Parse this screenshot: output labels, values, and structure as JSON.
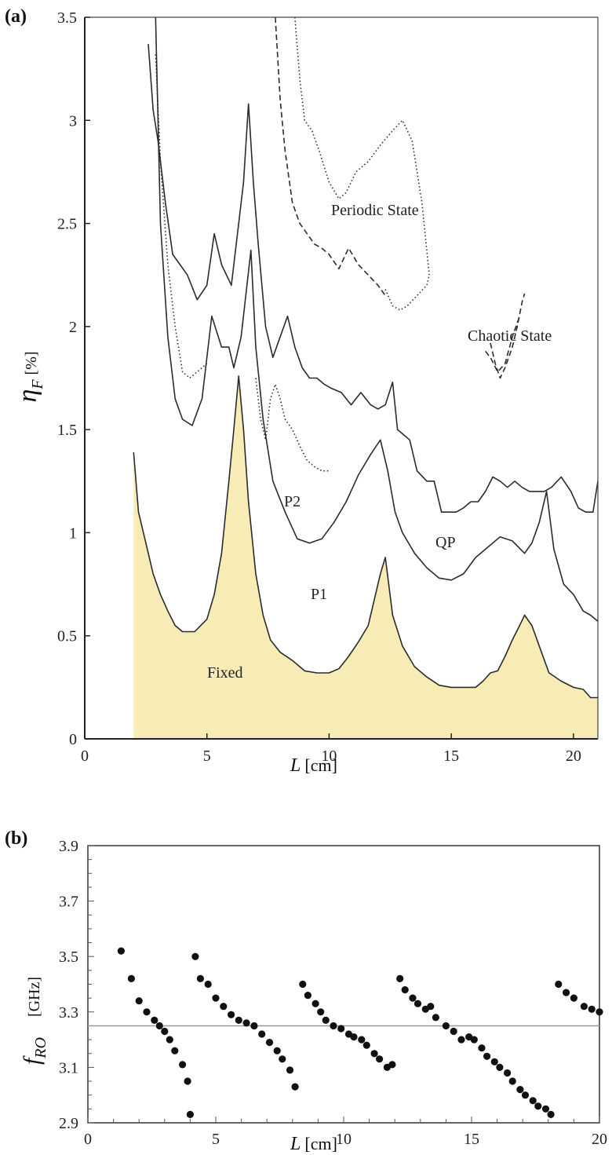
{
  "chart_data": [
    {
      "panel_label": "(a)",
      "type": "area",
      "xlabel_var": "L",
      "xlabel_unit": "[cm]",
      "ylabel_var": "η",
      "ylabel_sub": "F",
      "ylabel_unit": "[%]",
      "xlim": [
        0,
        21
      ],
      "ylim": [
        0,
        3.5
      ],
      "xticks": [
        0,
        5,
        10,
        15,
        20
      ],
      "yticks": [
        0,
        0.5,
        1,
        1.5,
        2,
        2.5,
        3,
        3.5
      ],
      "annotations": [
        "Periodic State",
        "Chaotic State",
        "P2",
        "QP",
        "P1",
        "Fixed"
      ],
      "fill_color": "#f7ecb5",
      "series": [
        {
          "style": "solid-filled",
          "x": [
            2.0,
            2.2,
            2.5,
            2.8,
            3.1,
            3.4,
            3.7,
            4.0,
            4.5,
            5.0,
            5.3,
            5.6,
            5.9,
            6.1,
            6.3,
            6.5,
            6.7,
            7.0,
            7.3,
            7.6,
            8.0,
            8.5,
            9.0,
            9.5,
            10.0,
            10.4,
            10.8,
            11.2,
            11.6,
            11.9,
            12.1,
            12.3,
            12.6,
            13.0,
            13.5,
            14.0,
            14.5,
            15.0,
            15.5,
            16.0,
            16.3,
            16.6,
            16.9,
            17.2,
            17.5,
            17.8,
            18.0,
            18.3,
            18.6,
            19.0,
            19.5,
            20.0,
            20.4,
            20.7,
            21.0
          ],
          "y": [
            1.39,
            1.1,
            0.95,
            0.8,
            0.7,
            0.62,
            0.55,
            0.52,
            0.52,
            0.58,
            0.7,
            0.9,
            1.25,
            1.5,
            1.76,
            1.5,
            1.15,
            0.8,
            0.6,
            0.48,
            0.42,
            0.38,
            0.33,
            0.32,
            0.32,
            0.34,
            0.4,
            0.47,
            0.55,
            0.7,
            0.8,
            0.88,
            0.6,
            0.45,
            0.35,
            0.3,
            0.26,
            0.25,
            0.25,
            0.25,
            0.28,
            0.32,
            0.33,
            0.4,
            0.48,
            0.55,
            0.6,
            0.55,
            0.45,
            0.32,
            0.28,
            0.25,
            0.24,
            0.2,
            0.2
          ]
        },
        {
          "style": "solid",
          "x": [
            2.9,
            3.1,
            3.4,
            3.7,
            4.0,
            4.4,
            4.8,
            5.2,
            5.6,
            5.9,
            6.1,
            6.4,
            6.8,
            7.0,
            7.3,
            7.7,
            8.2,
            8.7,
            9.2,
            9.7,
            10.2,
            10.7,
            11.2,
            11.7,
            12.1,
            12.4,
            12.7,
            13.0,
            13.5,
            14.0,
            14.5,
            15.0,
            15.5,
            16.0,
            16.5,
            17.0,
            17.5,
            18.0,
            18.3,
            18.6,
            18.9,
            19.2,
            19.6,
            20.0,
            20.4,
            20.7,
            21.0
          ],
          "y": [
            3.5,
            2.5,
            1.95,
            1.65,
            1.55,
            1.52,
            1.65,
            2.05,
            1.9,
            1.9,
            1.8,
            1.95,
            2.37,
            1.9,
            1.55,
            1.25,
            1.1,
            0.97,
            0.95,
            0.97,
            1.05,
            1.15,
            1.28,
            1.38,
            1.45,
            1.3,
            1.1,
            1.0,
            0.9,
            0.83,
            0.78,
            0.77,
            0.8,
            0.88,
            0.93,
            0.98,
            0.96,
            0.9,
            0.95,
            1.05,
            1.2,
            0.92,
            0.75,
            0.7,
            0.62,
            0.6,
            0.57
          ]
        },
        {
          "style": "solid",
          "x": [
            2.6,
            2.8,
            3.0,
            3.3,
            3.6,
            3.9,
            4.2,
            4.6,
            5.0,
            5.3,
            5.6,
            6.0,
            6.3,
            6.5,
            6.7,
            6.9,
            7.1,
            7.4,
            7.7,
            8.0,
            8.3,
            8.6,
            8.9,
            9.2,
            9.5,
            9.8,
            10.1,
            10.5,
            10.9,
            11.3,
            11.7,
            12.0,
            12.3,
            12.6,
            12.8,
            13.0,
            13.3,
            13.6,
            14.0,
            14.3,
            14.6,
            14.9,
            15.2,
            15.5,
            15.8,
            16.1,
            16.4,
            16.7,
            17.0,
            17.3,
            17.6,
            17.9,
            18.2,
            18.5,
            18.8,
            19.1,
            19.5,
            19.9,
            20.2,
            20.5,
            20.8,
            21.0
          ],
          "y": [
            3.37,
            3.05,
            2.9,
            2.6,
            2.35,
            2.3,
            2.25,
            2.13,
            2.2,
            2.45,
            2.3,
            2.2,
            2.5,
            2.7,
            3.08,
            2.7,
            2.4,
            2.0,
            1.85,
            1.95,
            2.05,
            1.9,
            1.8,
            1.75,
            1.75,
            1.72,
            1.7,
            1.68,
            1.62,
            1.68,
            1.62,
            1.6,
            1.62,
            1.73,
            1.5,
            1.48,
            1.45,
            1.3,
            1.25,
            1.25,
            1.1,
            1.1,
            1.1,
            1.12,
            1.15,
            1.15,
            1.2,
            1.27,
            1.25,
            1.22,
            1.25,
            1.22,
            1.2,
            1.2,
            1.2,
            1.22,
            1.27,
            1.2,
            1.12,
            1.1,
            1.1,
            1.25
          ]
        },
        {
          "style": "dotted",
          "x": [
            2.9,
            3.1,
            3.4,
            3.7,
            4.0,
            4.3,
            4.6,
            5.0
          ],
          "y": [
            3.32,
            2.8,
            2.3,
            2.0,
            1.78,
            1.75,
            1.78,
            1.82
          ]
        },
        {
          "style": "dotted",
          "x": [
            7.0,
            7.2,
            7.4,
            7.6,
            7.8,
            8.0,
            8.2,
            8.5,
            8.8,
            9.1,
            9.4,
            9.7,
            10.0
          ],
          "y": [
            1.75,
            1.55,
            1.45,
            1.65,
            1.72,
            1.65,
            1.55,
            1.5,
            1.42,
            1.35,
            1.32,
            1.3,
            1.3
          ]
        },
        {
          "style": "dashed",
          "x": [
            7.8,
            8.0,
            8.2,
            8.5,
            8.8,
            9.1,
            9.4,
            9.7,
            10.0,
            10.4,
            10.8,
            11.2,
            11.6,
            12.0,
            12.3
          ],
          "y": [
            3.5,
            3.1,
            2.85,
            2.6,
            2.5,
            2.45,
            2.4,
            2.38,
            2.35,
            2.28,
            2.38,
            2.3,
            2.25,
            2.2,
            2.15
          ]
        },
        {
          "style": "dotted",
          "x": [
            8.6,
            8.8,
            9.0,
            9.3,
            9.6,
            10.0,
            10.4,
            10.7,
            11.1,
            11.6,
            12.1,
            12.6,
            13.0,
            13.4,
            13.8,
            14.1
          ],
          "y": [
            3.5,
            3.2,
            3.0,
            2.95,
            2.85,
            2.7,
            2.62,
            2.65,
            2.75,
            2.8,
            2.88,
            2.95,
            3.0,
            2.9,
            2.6,
            2.25
          ]
        },
        {
          "style": "dotted",
          "x": [
            12.3,
            12.6,
            12.9,
            13.2,
            13.6,
            14.0,
            14.1
          ],
          "y": [
            2.18,
            2.1,
            2.08,
            2.1,
            2.15,
            2.2,
            2.25
          ]
        },
        {
          "style": "dashed",
          "x": [
            16.6,
            16.8,
            17.0,
            17.2,
            17.5,
            17.7,
            17.9,
            18.0
          ],
          "y": [
            1.92,
            1.82,
            1.75,
            1.8,
            1.9,
            2.0,
            2.12,
            2.16
          ]
        },
        {
          "style": "dashed",
          "x": [
            16.4,
            16.6,
            16.9,
            17.2,
            17.5,
            17.8
          ],
          "y": [
            1.88,
            1.85,
            1.78,
            1.82,
            1.95,
            2.05
          ]
        }
      ]
    },
    {
      "panel_label": "(b)",
      "type": "scatter",
      "xlabel_var": "L",
      "xlabel_unit": "[cm]",
      "ylabel_var": "f",
      "ylabel_sub": "RO",
      "ylabel_unit": "[GHz]",
      "xlim": [
        0,
        20
      ],
      "ylim": [
        2.9,
        3.9
      ],
      "xticks": [
        0,
        5,
        10,
        15,
        20
      ],
      "yticks": [
        2.9,
        3.1,
        3.3,
        3.5,
        3.7,
        3.9
      ],
      "hline": 3.25,
      "x": [
        1.3,
        1.7,
        2.0,
        2.3,
        2.6,
        2.8,
        3.0,
        3.2,
        3.4,
        3.7,
        3.9,
        4.0,
        4.2,
        4.4,
        4.7,
        5.0,
        5.3,
        5.6,
        5.9,
        6.2,
        6.5,
        6.8,
        7.1,
        7.4,
        7.6,
        7.9,
        8.1,
        8.4,
        8.6,
        8.9,
        9.1,
        9.3,
        9.6,
        9.9,
        10.2,
        10.4,
        10.7,
        10.9,
        11.2,
        11.4,
        11.7,
        11.9,
        12.2,
        12.4,
        12.7,
        12.9,
        13.2,
        13.4,
        13.6,
        14.0,
        14.3,
        14.6,
        14.9,
        15.1,
        15.4,
        15.6,
        15.9,
        16.1,
        16.4,
        16.6,
        16.9,
        17.1,
        17.4,
        17.6,
        17.9,
        18.1,
        18.4,
        18.7,
        19.0,
        19.4,
        19.7,
        20.0
      ],
      "y": [
        3.52,
        3.42,
        3.34,
        3.3,
        3.27,
        3.25,
        3.23,
        3.2,
        3.16,
        3.11,
        3.05,
        2.93,
        3.5,
        3.42,
        3.4,
        3.35,
        3.32,
        3.29,
        3.27,
        3.26,
        3.25,
        3.22,
        3.19,
        3.16,
        3.13,
        3.09,
        3.03,
        3.4,
        3.36,
        3.33,
        3.3,
        3.27,
        3.25,
        3.24,
        3.22,
        3.21,
        3.2,
        3.18,
        3.15,
        3.13,
        3.1,
        3.11,
        3.42,
        3.38,
        3.35,
        3.33,
        3.31,
        3.32,
        3.28,
        3.25,
        3.23,
        3.2,
        3.21,
        3.2,
        3.17,
        3.14,
        3.12,
        3.1,
        3.08,
        3.05,
        3.02,
        3.0,
        2.98,
        2.96,
        2.95,
        2.93,
        3.4,
        3.37,
        3.35,
        3.32,
        3.31,
        3.3
      ]
    }
  ]
}
